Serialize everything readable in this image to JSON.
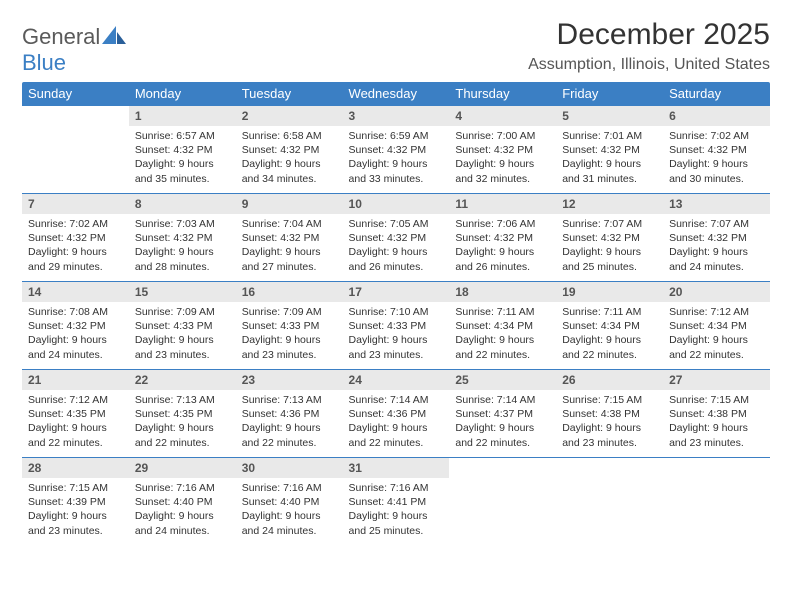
{
  "brand": {
    "part1": "General",
    "part2": "Blue"
  },
  "title": "December 2025",
  "location": "Assumption, Illinois, United States",
  "colors": {
    "accent": "#3b7fc4",
    "dayHeaderBg": "#e9e9e9",
    "text": "#333333",
    "bg": "#ffffff"
  },
  "weekdays": [
    "Sunday",
    "Monday",
    "Tuesday",
    "Wednesday",
    "Thursday",
    "Friday",
    "Saturday"
  ],
  "weeks": [
    [
      null,
      {
        "n": "1",
        "sr": "6:57 AM",
        "ss": "4:32 PM",
        "dl": "9 hours and 35 minutes."
      },
      {
        "n": "2",
        "sr": "6:58 AM",
        "ss": "4:32 PM",
        "dl": "9 hours and 34 minutes."
      },
      {
        "n": "3",
        "sr": "6:59 AM",
        "ss": "4:32 PM",
        "dl": "9 hours and 33 minutes."
      },
      {
        "n": "4",
        "sr": "7:00 AM",
        "ss": "4:32 PM",
        "dl": "9 hours and 32 minutes."
      },
      {
        "n": "5",
        "sr": "7:01 AM",
        "ss": "4:32 PM",
        "dl": "9 hours and 31 minutes."
      },
      {
        "n": "6",
        "sr": "7:02 AM",
        "ss": "4:32 PM",
        "dl": "9 hours and 30 minutes."
      }
    ],
    [
      {
        "n": "7",
        "sr": "7:02 AM",
        "ss": "4:32 PM",
        "dl": "9 hours and 29 minutes."
      },
      {
        "n": "8",
        "sr": "7:03 AM",
        "ss": "4:32 PM",
        "dl": "9 hours and 28 minutes."
      },
      {
        "n": "9",
        "sr": "7:04 AM",
        "ss": "4:32 PM",
        "dl": "9 hours and 27 minutes."
      },
      {
        "n": "10",
        "sr": "7:05 AM",
        "ss": "4:32 PM",
        "dl": "9 hours and 26 minutes."
      },
      {
        "n": "11",
        "sr": "7:06 AM",
        "ss": "4:32 PM",
        "dl": "9 hours and 26 minutes."
      },
      {
        "n": "12",
        "sr": "7:07 AM",
        "ss": "4:32 PM",
        "dl": "9 hours and 25 minutes."
      },
      {
        "n": "13",
        "sr": "7:07 AM",
        "ss": "4:32 PM",
        "dl": "9 hours and 24 minutes."
      }
    ],
    [
      {
        "n": "14",
        "sr": "7:08 AM",
        "ss": "4:32 PM",
        "dl": "9 hours and 24 minutes."
      },
      {
        "n": "15",
        "sr": "7:09 AM",
        "ss": "4:33 PM",
        "dl": "9 hours and 23 minutes."
      },
      {
        "n": "16",
        "sr": "7:09 AM",
        "ss": "4:33 PM",
        "dl": "9 hours and 23 minutes."
      },
      {
        "n": "17",
        "sr": "7:10 AM",
        "ss": "4:33 PM",
        "dl": "9 hours and 23 minutes."
      },
      {
        "n": "18",
        "sr": "7:11 AM",
        "ss": "4:34 PM",
        "dl": "9 hours and 22 minutes."
      },
      {
        "n": "19",
        "sr": "7:11 AM",
        "ss": "4:34 PM",
        "dl": "9 hours and 22 minutes."
      },
      {
        "n": "20",
        "sr": "7:12 AM",
        "ss": "4:34 PM",
        "dl": "9 hours and 22 minutes."
      }
    ],
    [
      {
        "n": "21",
        "sr": "7:12 AM",
        "ss": "4:35 PM",
        "dl": "9 hours and 22 minutes."
      },
      {
        "n": "22",
        "sr": "7:13 AM",
        "ss": "4:35 PM",
        "dl": "9 hours and 22 minutes."
      },
      {
        "n": "23",
        "sr": "7:13 AM",
        "ss": "4:36 PM",
        "dl": "9 hours and 22 minutes."
      },
      {
        "n": "24",
        "sr": "7:14 AM",
        "ss": "4:36 PM",
        "dl": "9 hours and 22 minutes."
      },
      {
        "n": "25",
        "sr": "7:14 AM",
        "ss": "4:37 PM",
        "dl": "9 hours and 22 minutes."
      },
      {
        "n": "26",
        "sr": "7:15 AM",
        "ss": "4:38 PM",
        "dl": "9 hours and 23 minutes."
      },
      {
        "n": "27",
        "sr": "7:15 AM",
        "ss": "4:38 PM",
        "dl": "9 hours and 23 minutes."
      }
    ],
    [
      {
        "n": "28",
        "sr": "7:15 AM",
        "ss": "4:39 PM",
        "dl": "9 hours and 23 minutes."
      },
      {
        "n": "29",
        "sr": "7:16 AM",
        "ss": "4:40 PM",
        "dl": "9 hours and 24 minutes."
      },
      {
        "n": "30",
        "sr": "7:16 AM",
        "ss": "4:40 PM",
        "dl": "9 hours and 24 minutes."
      },
      {
        "n": "31",
        "sr": "7:16 AM",
        "ss": "4:41 PM",
        "dl": "9 hours and 25 minutes."
      },
      null,
      null,
      null
    ]
  ],
  "labels": {
    "sunrise": "Sunrise:",
    "sunset": "Sunset:",
    "daylight": "Daylight:"
  }
}
